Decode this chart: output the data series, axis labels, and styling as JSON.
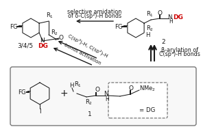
{
  "bg_color": "#ffffff",
  "text_color": "#1a1a1a",
  "red_color": "#cc0000",
  "top_arrow_text_line1": "selective amidation",
  "top_arrow_text_line2": "of δ-C(sp²)-H bonds",
  "left_arrow_text_line1": "C(sp³)-H, C(sp²)-H",
  "left_arrow_text_line2": "bonds activation",
  "right_arrow_text_line1": "β-arylation of",
  "right_arrow_text_line2": "C(sp³)-H bonds",
  "compound1_label": "1",
  "compound2_label": "2",
  "compound345_label": "3/4/5"
}
